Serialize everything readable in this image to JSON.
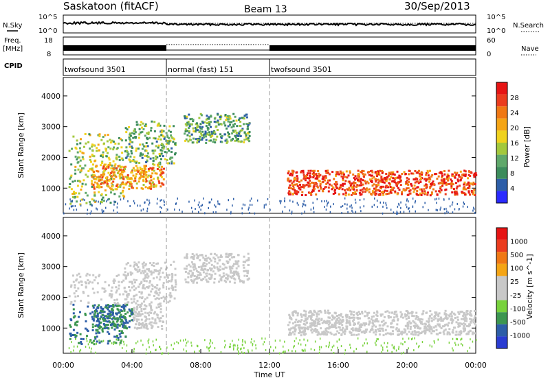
{
  "header": {
    "title": "Saskatoon (fitACF)",
    "beam": "Beam 13",
    "date": "30/Sep/2013"
  },
  "noise_panel": {
    "left_label": "N.Sky",
    "right_label": "N.Search",
    "left_ticks": [
      "10^5",
      "10^0"
    ],
    "right_ticks": [
      "10^5",
      "10^0"
    ]
  },
  "freq_panel": {
    "left_label_1": "Freq.",
    "left_label_2": "[MHz]",
    "right_label": "Nave",
    "left_ticks": [
      "18",
      "8"
    ],
    "right_ticks": [
      "60",
      "0"
    ]
  },
  "cpid_panel": {
    "label": "CPID",
    "modes": [
      {
        "label": "twofsound 3501",
        "start_h": 0,
        "end_h": 6
      },
      {
        "label": "normal (fast) 151",
        "start_h": 6,
        "end_h": 12
      },
      {
        "label": "twofsound 3501",
        "start_h": 12,
        "end_h": 24
      }
    ]
  },
  "chart_data": [
    {
      "type": "heatmap",
      "name": "power",
      "ylabel": "Slant Range [km]",
      "yticks": [
        1000,
        2000,
        3000,
        4000
      ],
      "ylim": [
        180,
        4600
      ],
      "colorbar_label": "Power [dB]",
      "colorbar_ticks": [
        "28",
        "24",
        "20",
        "16",
        "12",
        "8",
        "4"
      ],
      "colors": [
        "#2a2aff",
        "#2d5ea8",
        "#3c8c5c",
        "#5fa86a",
        "#a3c83c",
        "#f0d21e",
        "#f5a515",
        "#f07814",
        "#eb3c1e",
        "#e61414"
      ],
      "echo_regions": [
        {
          "t0": 0.3,
          "t1": 3.6,
          "r0": 500,
          "r1": 2800,
          "level": 0.45
        },
        {
          "t0": 1.6,
          "t1": 5.8,
          "r0": 1000,
          "r1": 1800,
          "level": 0.7
        },
        {
          "t0": 3.5,
          "t1": 6.5,
          "r0": 1800,
          "r1": 3200,
          "level": 0.35
        },
        {
          "t0": 7.0,
          "t1": 10.8,
          "r0": 2500,
          "r1": 3450,
          "level": 0.3
        },
        {
          "t0": 13.0,
          "t1": 24.0,
          "r0": 800,
          "r1": 1600,
          "level": 0.9
        }
      ]
    },
    {
      "type": "heatmap",
      "name": "velocity",
      "ylabel": "Slant Range [km]",
      "yticks": [
        1000,
        2000,
        3000,
        4000
      ],
      "ylim": [
        180,
        4600
      ],
      "colorbar_label": "Velocity [m s^-1]",
      "colorbar_ticks": [
        "1000",
        "500",
        "100",
        "25",
        "-25",
        "-100",
        "-500",
        "-1000"
      ],
      "colors": [
        "#2a3cd2",
        "#2d5ea8",
        "#3c9650",
        "#78d23c",
        "#c8c8c8",
        "#c8c8c8",
        "#f5a515",
        "#f07814",
        "#eb3c1e",
        "#e61414"
      ],
      "xlabel": "Time UT",
      "xticks": [
        "00:00",
        "04:00",
        "08:00",
        "12:00",
        "16:00",
        "20:00",
        "00:00"
      ],
      "xlim_hours": [
        0,
        24
      ]
    }
  ]
}
